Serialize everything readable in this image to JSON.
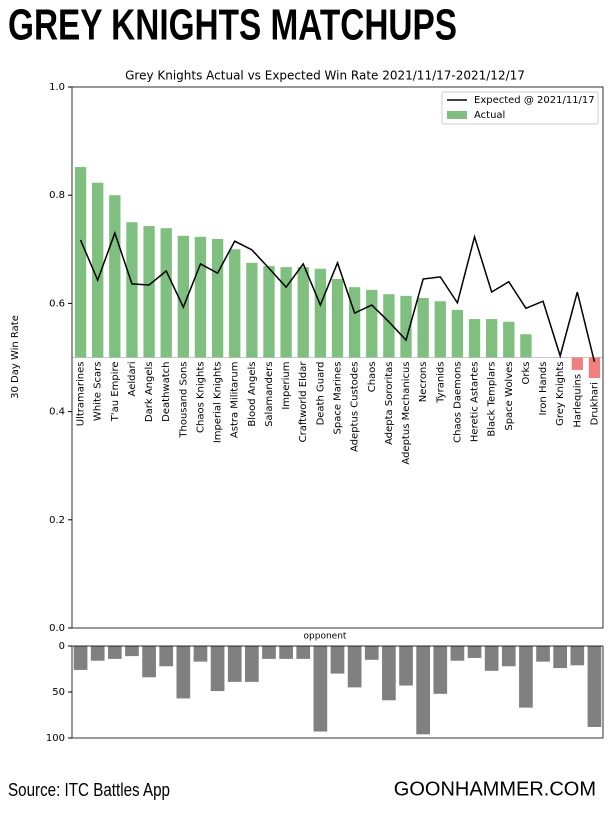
{
  "header": {
    "title": "GREY KNIGHTS MATCHUPS"
  },
  "footer": {
    "source": "Source: ITC Battles App",
    "brand": "GOONHAMMER.COM"
  },
  "chart_data": [
    {
      "type": "bar",
      "title": "Grey Knights Actual vs Expected Win Rate 2021/11/17-2021/12/17",
      "y_label": "30 Day Win Rate",
      "x_label": "opponent",
      "categories": [
        "Ultramarines",
        "White Scars",
        "T'au Empire",
        "Aeldari",
        "Dark Angels",
        "Deathwatch",
        "Thousand Sons",
        "Chaos Knights",
        "Imperial Knights",
        "Astra Militarum",
        "Blood Angels",
        "Salamanders",
        "Imperium",
        "Craftworld Eldar",
        "Death Guard",
        "Space Marines",
        "Adeptus Custodes",
        "Chaos",
        "Adepta Sororitas",
        "Adeptus Mechanicus",
        "Necrons",
        "Tyranids",
        "Chaos Daemons",
        "Heretic Astartes",
        "Black Templars",
        "Space Wolves",
        "Orks",
        "Iron Hands",
        "Grey Knights",
        "Harlequins",
        "Drukhari"
      ],
      "series": [
        {
          "name": "Expected @ 2021/11/17",
          "type": "line",
          "color": "#000000",
          "values": [
            0.717,
            0.643,
            0.73,
            0.636,
            0.634,
            0.66,
            0.593,
            0.673,
            0.656,
            0.715,
            0.699,
            0.665,
            0.63,
            0.673,
            0.597,
            0.675,
            0.582,
            0.597,
            0.566,
            0.532,
            0.645,
            0.649,
            0.601,
            0.723,
            0.621,
            0.64,
            0.591,
            0.604,
            0.503,
            0.621,
            0.492
          ]
        },
        {
          "name": "Actual",
          "type": "bar",
          "color": "#7fbf7f",
          "colors": [
            "#7fbf7f",
            "#7fbf7f",
            "#7fbf7f",
            "#7fbf7f",
            "#7fbf7f",
            "#7fbf7f",
            "#7fbf7f",
            "#7fbf7f",
            "#7fbf7f",
            "#7fbf7f",
            "#7fbf7f",
            "#7fbf7f",
            "#7fbf7f",
            "#7fbf7f",
            "#7fbf7f",
            "#7fbf7f",
            "#7fbf7f",
            "#7fbf7f",
            "#7fbf7f",
            "#7fbf7f",
            "#7fbf7f",
            "#7fbf7f",
            "#7fbf7f",
            "#7fbf7f",
            "#7fbf7f",
            "#7fbf7f",
            "#7fbf7f",
            "#7fbf7f",
            "#7fbf7f",
            "#f08080",
            "#f08080"
          ],
          "values": [
            0.852,
            0.823,
            0.8,
            0.75,
            0.743,
            0.739,
            0.725,
            0.723,
            0.719,
            0.7,
            0.675,
            0.669,
            0.667,
            0.667,
            0.664,
            0.645,
            0.63,
            0.625,
            0.617,
            0.614,
            0.61,
            0.604,
            0.588,
            0.571,
            0.571,
            0.566,
            0.543,
            0.5,
            0.5,
            0.477,
            0.462
          ]
        }
      ],
      "bar_base": 0.5,
      "ylim": [
        0,
        1
      ],
      "yticks": [
        {
          "value": 0,
          "label": "0.0"
        },
        0.2,
        0.4,
        0.6,
        0.8,
        {
          "value": 1,
          "label": "1.0"
        }
      ],
      "legend": "upper right"
    },
    {
      "type": "bar",
      "color": "#808080",
      "values": [
        26,
        16,
        14,
        11,
        34,
        22,
        57,
        17,
        49,
        39,
        39,
        14,
        14,
        14,
        93,
        30,
        45,
        15,
        59,
        43,
        96,
        52,
        16,
        13,
        27,
        22,
        67,
        17,
        24,
        21,
        88
      ],
      "ylim": [
        0,
        100
      ],
      "yticks": [
        0,
        50,
        100
      ],
      "inverted": true
    }
  ]
}
